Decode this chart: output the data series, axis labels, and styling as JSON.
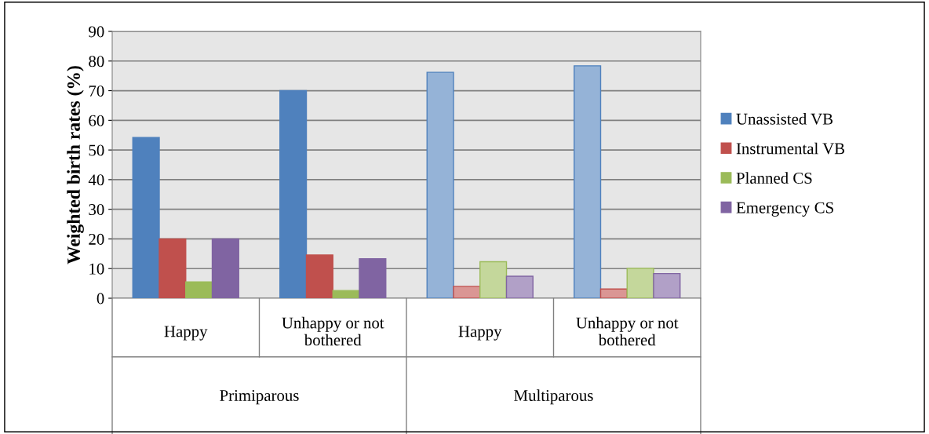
{
  "chart_data": {
    "type": "bar",
    "ylabel": "Weighted birth rates (%)",
    "categories": [
      "Happy",
      "Unhappy or not bothered",
      "Happy",
      "Unhappy or not bothered"
    ],
    "annotations": [
      "Primiparous",
      "Multiparous"
    ],
    "series": [
      {
        "name": "Unassisted VB",
        "color": "#4f81bd",
        "colors": [
          "#4f81bd",
          "#4f81bd",
          "#95b3d7",
          "#95b3d7"
        ],
        "values": [
          54.2,
          70,
          76.2,
          78.4
        ]
      },
      {
        "name": "Instrumental VB",
        "color": "#c0504d",
        "colors": [
          "#c0504d",
          "#c0504d",
          "#da9694",
          "#da9694"
        ],
        "values": [
          20,
          14.6,
          4.0,
          3.1
        ]
      },
      {
        "name": "Planned CS",
        "color": "#9bbb59",
        "colors": [
          "#9bbb59",
          "#9bbb59",
          "#c4d79b",
          "#c4d79b"
        ],
        "values": [
          5.5,
          2.6,
          12.3,
          10.1
        ]
      },
      {
        "name": "Emergency CS",
        "color": "#8064a2",
        "colors": [
          "#8064a2",
          "#8064a2",
          "#b1a0c7",
          "#b1a0c7"
        ],
        "values": [
          20,
          13.3,
          7.4,
          8.3
        ]
      }
    ],
    "ylim": [
      0,
      90
    ],
    "yticks": [
      0,
      10,
      20,
      30,
      40,
      50,
      60,
      70,
      80,
      90
    ],
    "grid": "y",
    "legend": "right"
  }
}
